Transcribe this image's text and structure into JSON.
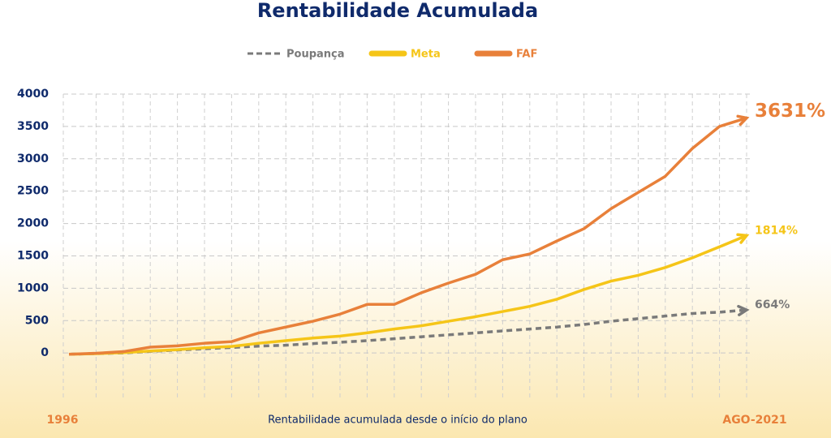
{
  "chart_data": {
    "type": "line",
    "title": "Rentabilidade Acumulada",
    "x_label": "Rentabilidade acumulada desde o início do plano",
    "categories": [
      "1996",
      null,
      null,
      null,
      null,
      null,
      null,
      null,
      null,
      null,
      null,
      null,
      null,
      null,
      null,
      null,
      null,
      null,
      null,
      null,
      null,
      null,
      null,
      null,
      null,
      "AGO-2021"
    ],
    "ylim": [
      -700,
      4000
    ],
    "yticks": [
      0,
      500,
      1000,
      1500,
      2000,
      2500,
      3000,
      3500,
      4000
    ],
    "grid": true,
    "series": [
      {
        "name": "Poupança",
        "color": "#7a7a7a",
        "dashed": true,
        "values": [
          -20,
          -10,
          0,
          25,
          45,
          65,
          85,
          105,
          120,
          145,
          165,
          190,
          220,
          250,
          280,
          310,
          340,
          370,
          400,
          440,
          490,
          530,
          570,
          610,
          630,
          664
        ],
        "value_labels": [
          null,
          null,
          null,
          null,
          null,
          null,
          null,
          null,
          null,
          null,
          null,
          null,
          null,
          null,
          null,
          null,
          null,
          null,
          null,
          null,
          null,
          null,
          null,
          null,
          null,
          "664%"
        ]
      },
      {
        "name": "Meta",
        "color": "#f5c518",
        "values": [
          -20,
          -10,
          5,
          30,
          50,
          80,
          100,
          150,
          190,
          230,
          260,
          310,
          370,
          420,
          490,
          560,
          640,
          720,
          830,
          980,
          1110,
          1200,
          1320,
          1470,
          1640,
          1814
        ],
        "value_labels": [
          null,
          null,
          null,
          null,
          null,
          null,
          null,
          null,
          null,
          null,
          null,
          null,
          null,
          null,
          null,
          null,
          null,
          null,
          null,
          null,
          null,
          null,
          null,
          null,
          null,
          "1814%"
        ]
      },
      {
        "name": "FAF",
        "color": "#e8803a",
        "values": [
          -20,
          -5,
          20,
          90,
          110,
          150,
          175,
          310,
          400,
          490,
          600,
          750,
          750,
          930,
          1080,
          1215,
          1440,
          1530,
          1730,
          1920,
          2230,
          2480,
          2730,
          3160,
          3500,
          3631
        ],
        "value_labels": [
          null,
          null,
          null,
          null,
          null,
          null,
          null,
          null,
          null,
          null,
          null,
          null,
          null,
          null,
          null,
          null,
          null,
          null,
          null,
          null,
          null,
          null,
          null,
          null,
          null,
          "3631%"
        ]
      }
    ]
  }
}
